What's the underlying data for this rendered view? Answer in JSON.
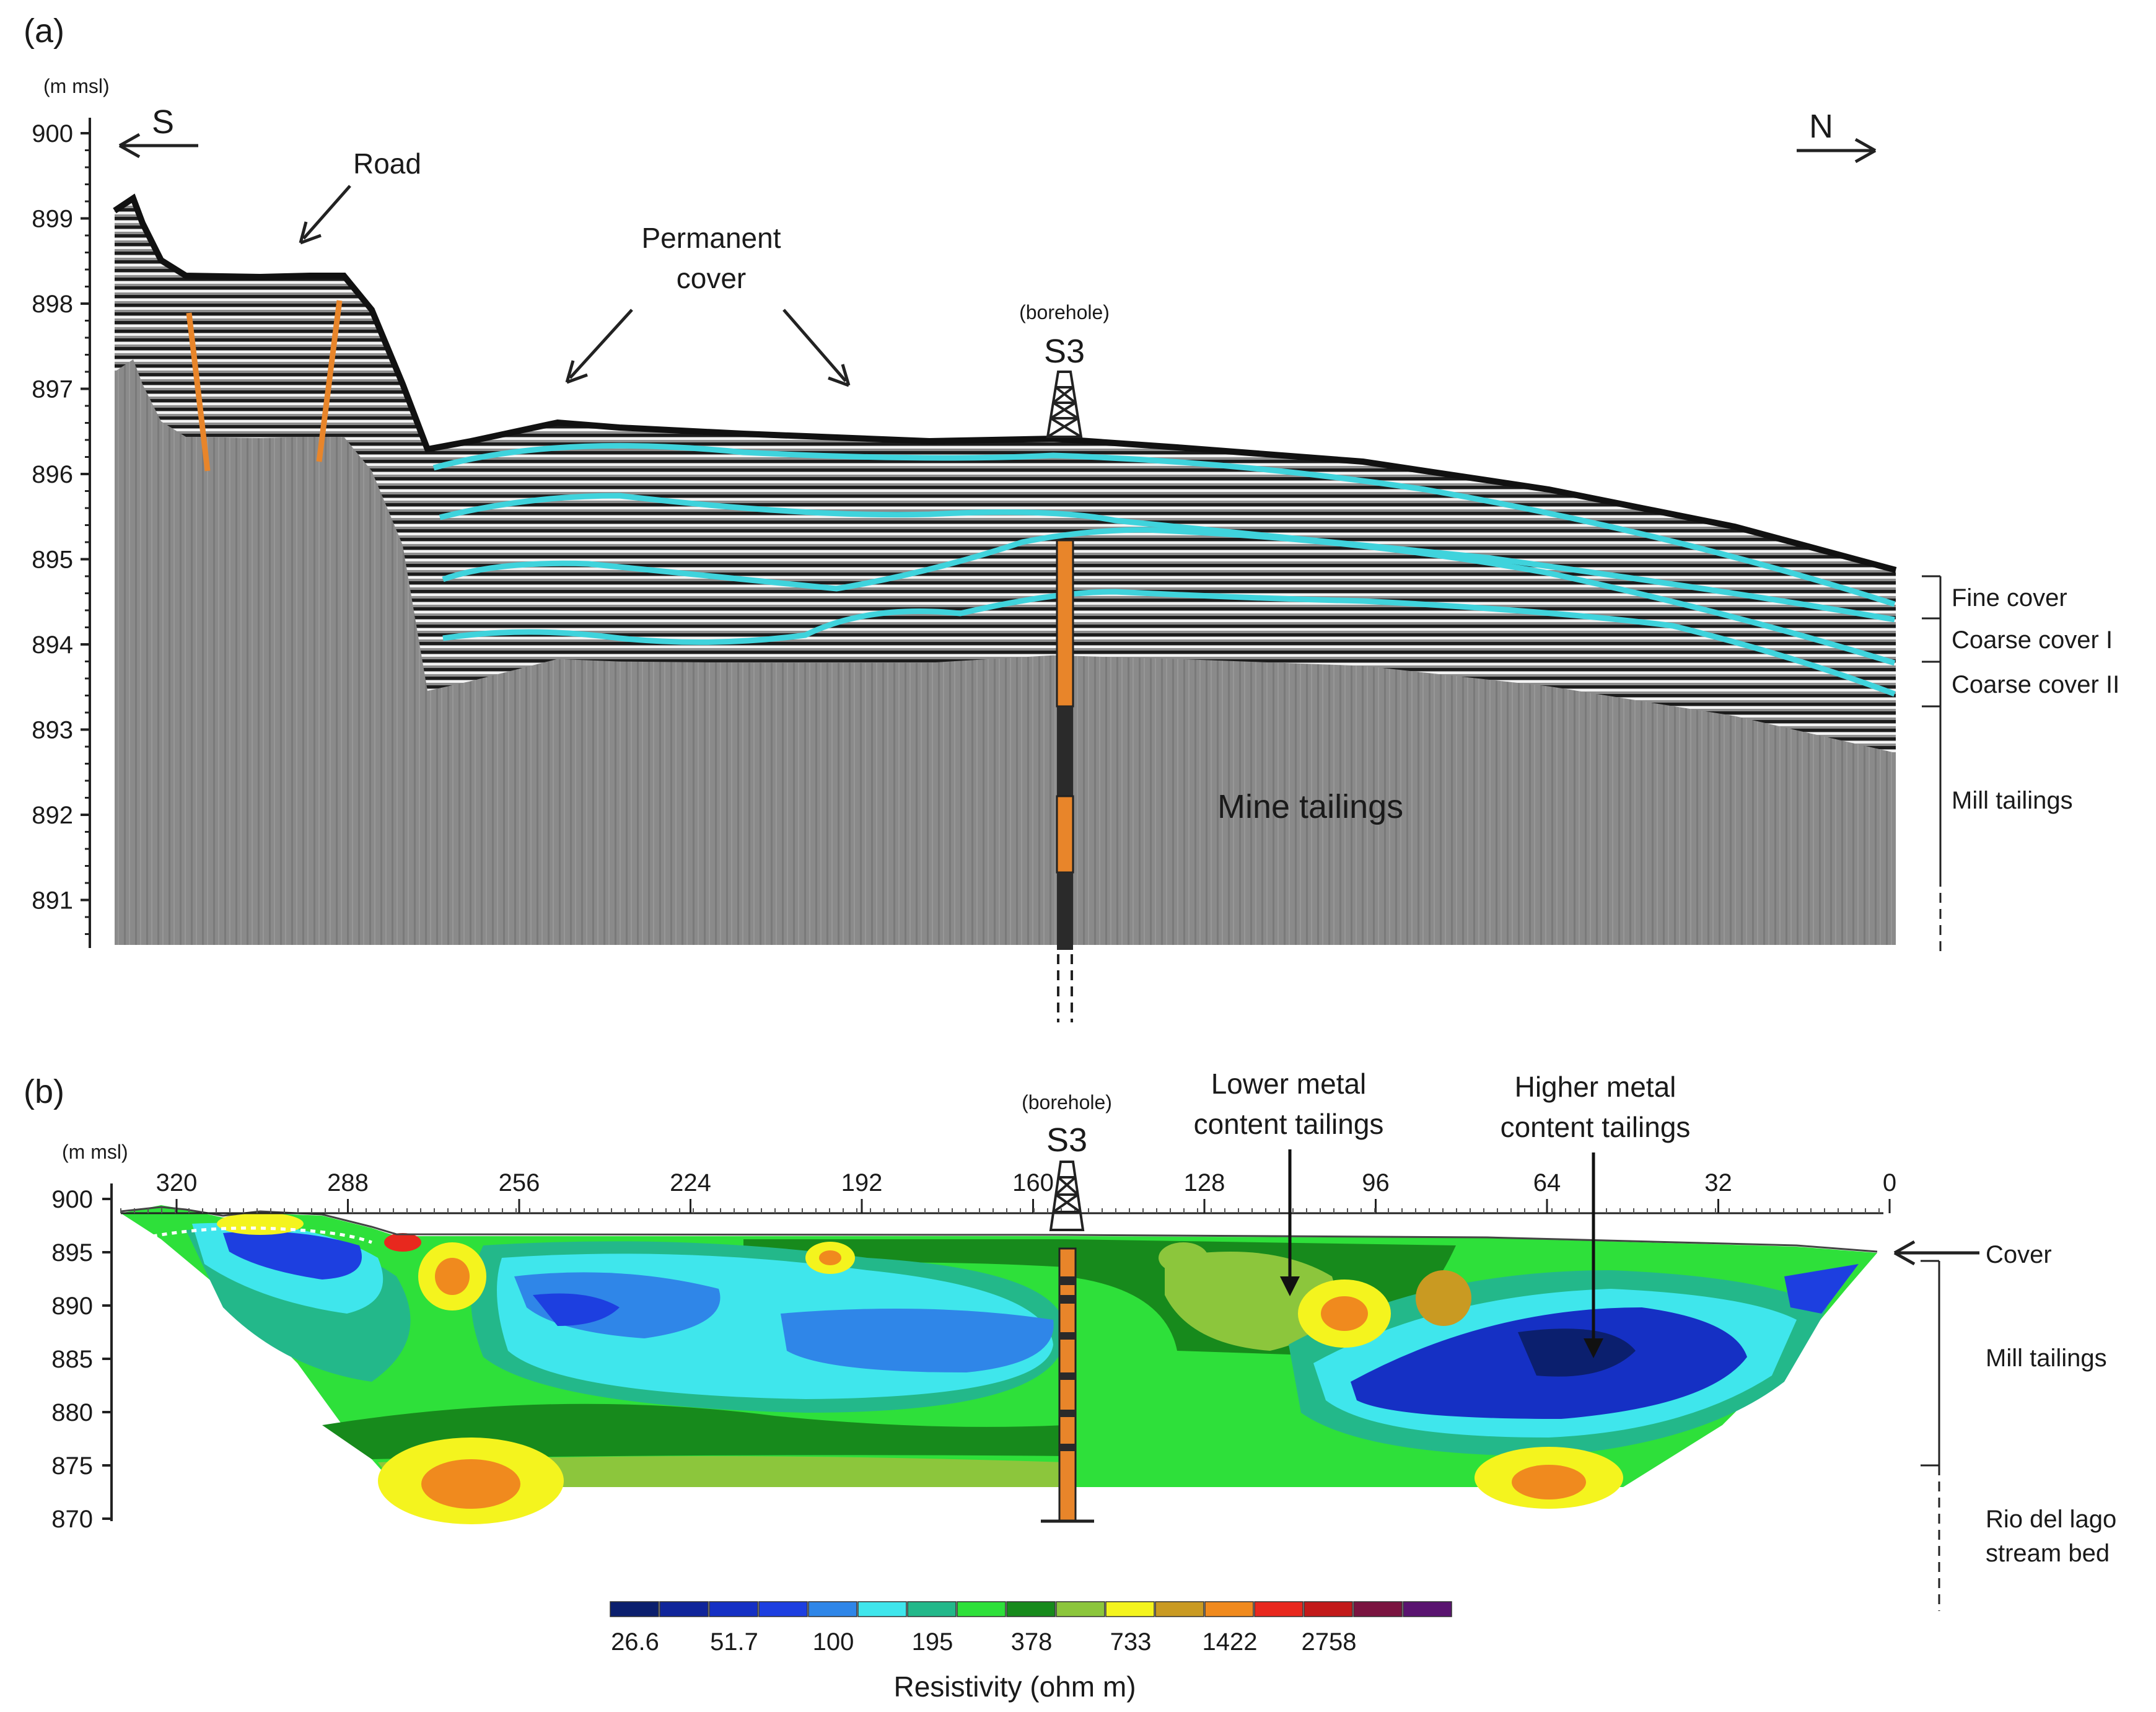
{
  "panel_a": {
    "label": "(a)",
    "y_unit": "(m msl)",
    "y_ticks": [
      "900",
      "899",
      "898",
      "897",
      "896",
      "895",
      "894",
      "893",
      "892",
      "891"
    ],
    "dir_left": "S",
    "dir_right": "N",
    "road_label": "Road",
    "cover_label_line1": "Permanent",
    "cover_label_line2": "cover",
    "borehole_caption": "(borehole)",
    "borehole_name": "S3",
    "tailings_label": "Mine tailings",
    "layers": [
      "Fine cover",
      "Coarse cover I",
      "Coarse cover II",
      "Mill tailings"
    ],
    "colors": {
      "interface": "#3fd3dc",
      "fault": "#e8852a",
      "core_orange": "#e8852a",
      "core_dark": "#2a2a2a"
    }
  },
  "panel_b": {
    "label": "(b)",
    "y_unit": "(m msl)",
    "y_ticks": [
      "900",
      "895",
      "890",
      "885",
      "880",
      "875",
      "870"
    ],
    "x_ticks": [
      "320",
      "288",
      "256",
      "224",
      "192",
      "160",
      "128",
      "96",
      "64",
      "32",
      "0"
    ],
    "borehole_caption": "(borehole)",
    "borehole_name": "S3",
    "lower_metal_line1": "Lower metal",
    "lower_metal_line2": "content tailings",
    "higher_metal_line1": "Higher metal",
    "higher_metal_line2": "content tailings",
    "layers": [
      "Cover",
      "Mill tailings",
      "Rio del lago",
      "stream bed"
    ]
  },
  "colorbar": {
    "title": "Resistivity (ohm m)",
    "labels": [
      "26.6",
      "51.7",
      "100",
      "195",
      "378",
      "733",
      "1422",
      "2758"
    ],
    "colors": [
      "#0b1f6e",
      "#10259a",
      "#1530c4",
      "#1d3fe0",
      "#2f86e8",
      "#3fe6ec",
      "#23b88a",
      "#2ee03a",
      "#178a1c",
      "#8cc63c",
      "#f4f41e",
      "#c99a22",
      "#f08a1e",
      "#e8281e",
      "#c21a1a",
      "#7a1440",
      "#5a1470"
    ]
  }
}
